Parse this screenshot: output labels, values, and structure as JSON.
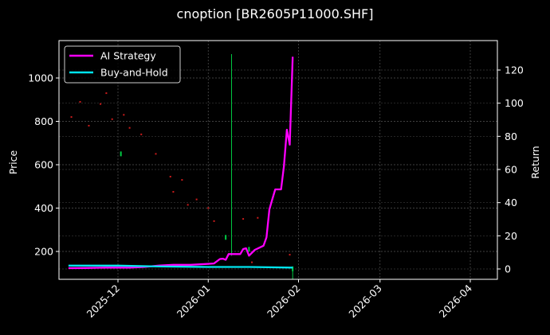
{
  "title": "cnoption [BR2605P11000.SHF]",
  "colors": {
    "background": "#000000",
    "ai_strategy": "#ff00ff",
    "buy_and_hold": "#00e5ee",
    "buy_marker": "#00cc44",
    "sell_marker": "#ff2222",
    "grid": "#555555",
    "frame": "#ffffff"
  },
  "legend": {
    "items": [
      {
        "label": "AI Strategy",
        "color": "#ff00ff"
      },
      {
        "label": "Buy-and-Hold",
        "color": "#00e5ee"
      }
    ]
  },
  "chart_data": {
    "type": "line",
    "title": "cnoption [BR2605P11000.SHF]",
    "xlabel": "",
    "ylabel_left": "Price",
    "ylabel_right": "Return",
    "x_tick_labels": [
      "2025-12",
      "2026-01",
      "2026-02",
      "2026-03",
      "2026-04"
    ],
    "y_left_ticks": [
      200,
      400,
      600,
      800,
      1000
    ],
    "y_right_ticks": [
      0,
      20,
      40,
      60,
      80,
      100,
      120
    ],
    "y_left_range": [
      70,
      1155
    ],
    "y_right_range": [
      -7,
      137
    ],
    "grid": true,
    "legend_position": "upper left",
    "series": [
      {
        "name": "AI Strategy",
        "axis": "right",
        "x": [
          "2025-11-14",
          "2025-11-20",
          "2025-11-27",
          "2025-12-05",
          "2025-12-10",
          "2025-12-15",
          "2025-12-20",
          "2025-12-26",
          "2025-12-31",
          "2026-01-03",
          "2026-01-05",
          "2026-01-06",
          "2026-01-07",
          "2026-01-08",
          "2026-01-09",
          "2026-01-12",
          "2026-01-13",
          "2026-01-14",
          "2026-01-15",
          "2026-01-17",
          "2026-01-20",
          "2026-01-21",
          "2026-01-22",
          "2026-01-23",
          "2026-01-24",
          "2026-01-26",
          "2026-01-27",
          "2026-01-28",
          "2026-01-29",
          "2026-01-30"
        ],
        "values": [
          0.5,
          0.6,
          0.8,
          0.8,
          1.2,
          2.0,
          2.5,
          2.5,
          3.0,
          3.3,
          6.0,
          6.2,
          5.5,
          9.0,
          9.0,
          9.0,
          12.0,
          12.5,
          8.0,
          11.5,
          14.0,
          19.0,
          36.0,
          42.0,
          48.0,
          48.0,
          62.0,
          84.0,
          75.0,
          128.0
        ]
      },
      {
        "name": "Buy-and-Hold",
        "axis": "right",
        "x": [
          "2025-11-14",
          "2025-12-01",
          "2025-12-15",
          "2026-01-01",
          "2026-01-15",
          "2026-01-30"
        ],
        "values": [
          2.0,
          2.0,
          1.5,
          1.2,
          1.2,
          0.8
        ]
      }
    ],
    "markers": {
      "buy": [
        {
          "x": "2025-12-02",
          "price": 650
        },
        {
          "x": "2026-01-07",
          "price": 265
        },
        {
          "x": "2026-01-09",
          "price": 1110,
          "vline": true
        },
        {
          "x": "2026-01-15",
          "price": 210
        },
        {
          "x": "2026-01-30",
          "price": 120
        }
      ],
      "sell": [
        {
          "x": "2025-11-15",
          "price": 820
        },
        {
          "x": "2025-11-18",
          "price": 890
        },
        {
          "x": "2025-11-21",
          "price": 780
        },
        {
          "x": "2025-11-25",
          "price": 880
        },
        {
          "x": "2025-11-27",
          "price": 930
        },
        {
          "x": "2025-11-29",
          "price": 810
        },
        {
          "x": "2025-12-03",
          "price": 830
        },
        {
          "x": "2025-12-05",
          "price": 770
        },
        {
          "x": "2025-12-09",
          "price": 740
        },
        {
          "x": "2025-12-14",
          "price": 650
        },
        {
          "x": "2025-12-19",
          "price": 545
        },
        {
          "x": "2025-12-20",
          "price": 475
        },
        {
          "x": "2025-12-23",
          "price": 530
        },
        {
          "x": "2025-12-25",
          "price": 415
        },
        {
          "x": "2025-12-28",
          "price": 440
        },
        {
          "x": "2026-01-01",
          "price": 400
        },
        {
          "x": "2026-01-03",
          "price": 340
        },
        {
          "x": "2026-01-13",
          "price": 350
        },
        {
          "x": "2026-01-16",
          "price": 150
        },
        {
          "x": "2026-01-18",
          "price": 355
        },
        {
          "x": "2026-01-29",
          "price": 185
        }
      ]
    }
  }
}
